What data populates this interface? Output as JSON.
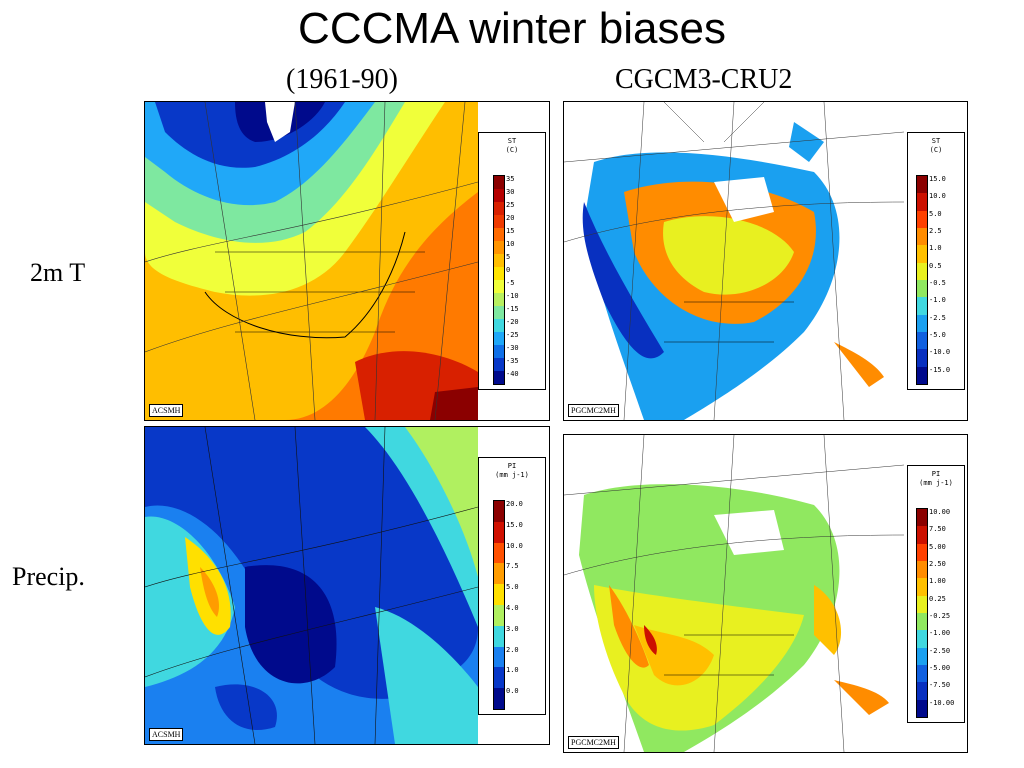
{
  "title": "CCCMA winter biases",
  "col_headers": {
    "left": "(1961-90)",
    "right": "CGCM3-CRU2"
  },
  "row_labels": {
    "top": "2m T",
    "bottom": "Precip."
  },
  "panels": {
    "st_model": {
      "tag": "ACSMH",
      "legend": {
        "var": "ST",
        "unit": "(C)",
        "labels": [
          "35",
          "30",
          "25",
          "20",
          "15",
          "10",
          "5",
          "0",
          "-5",
          "-10",
          "-15",
          "-20",
          "-25",
          "-30",
          "-35",
          "-40"
        ],
        "colors": [
          "#8b0000",
          "#b50000",
          "#d82000",
          "#ef3a00",
          "#ff6a00",
          "#ff9400",
          "#ffbe00",
          "#ffe400",
          "#f0ff3a",
          "#b8f060",
          "#7ee8a0",
          "#40d8e0",
          "#20a8f8",
          "#1070e8",
          "#0838c8",
          "#000a8c"
        ]
      },
      "bg": "#ff7a00"
    },
    "st_bias": {
      "tag": "PGCMC2MH",
      "legend": {
        "var": "ST",
        "unit": "(C)",
        "labels": [
          "15.0",
          "10.0",
          "5.0",
          "2.5",
          "1.0",
          "0.5",
          "-0.5",
          "-1.0",
          "-2.5",
          "-5.0",
          "-10.0",
          "-15.0"
        ],
        "colors": [
          "#8b0000",
          "#cc1000",
          "#ff4000",
          "#ff8c00",
          "#ffc000",
          "#e8f020",
          "#90e860",
          "#40d8e0",
          "#1aa0f0",
          "#1060e0",
          "#0830c0",
          "#000a8c"
        ]
      },
      "bg": "#ffffff"
    },
    "pr_model": {
      "tag": "ACSMH",
      "legend": {
        "var": "PI",
        "unit": "(mm j-1)",
        "labels": [
          "20.0",
          "15.0",
          "10.0",
          "7.5",
          "5.0",
          "4.0",
          "3.0",
          "2.0",
          "1.0",
          "0.0"
        ],
        "colors": [
          "#8b0000",
          "#d01000",
          "#ff5000",
          "#ff9c00",
          "#ffe000",
          "#b0f060",
          "#40d8e0",
          "#1a80f0",
          "#0838c8",
          "#000a8c"
        ]
      },
      "bg": "#0a30c0"
    },
    "pr_bias": {
      "tag": "PGCMC2MH",
      "legend": {
        "var": "PI",
        "unit": "(mm j-1)",
        "labels": [
          "10.00",
          "7.50",
          "5.00",
          "2.50",
          "1.00",
          "0.25",
          "-0.25",
          "-1.00",
          "-2.50",
          "-5.00",
          "-7.50",
          "-10.00"
        ],
        "colors": [
          "#8b0000",
          "#cc1000",
          "#ff4000",
          "#ff8c00",
          "#ffc000",
          "#e8f020",
          "#90e860",
          "#40d8e0",
          "#1aa0f0",
          "#1060e0",
          "#0830c0",
          "#000a8c"
        ]
      },
      "bg": "#ffffff"
    }
  }
}
